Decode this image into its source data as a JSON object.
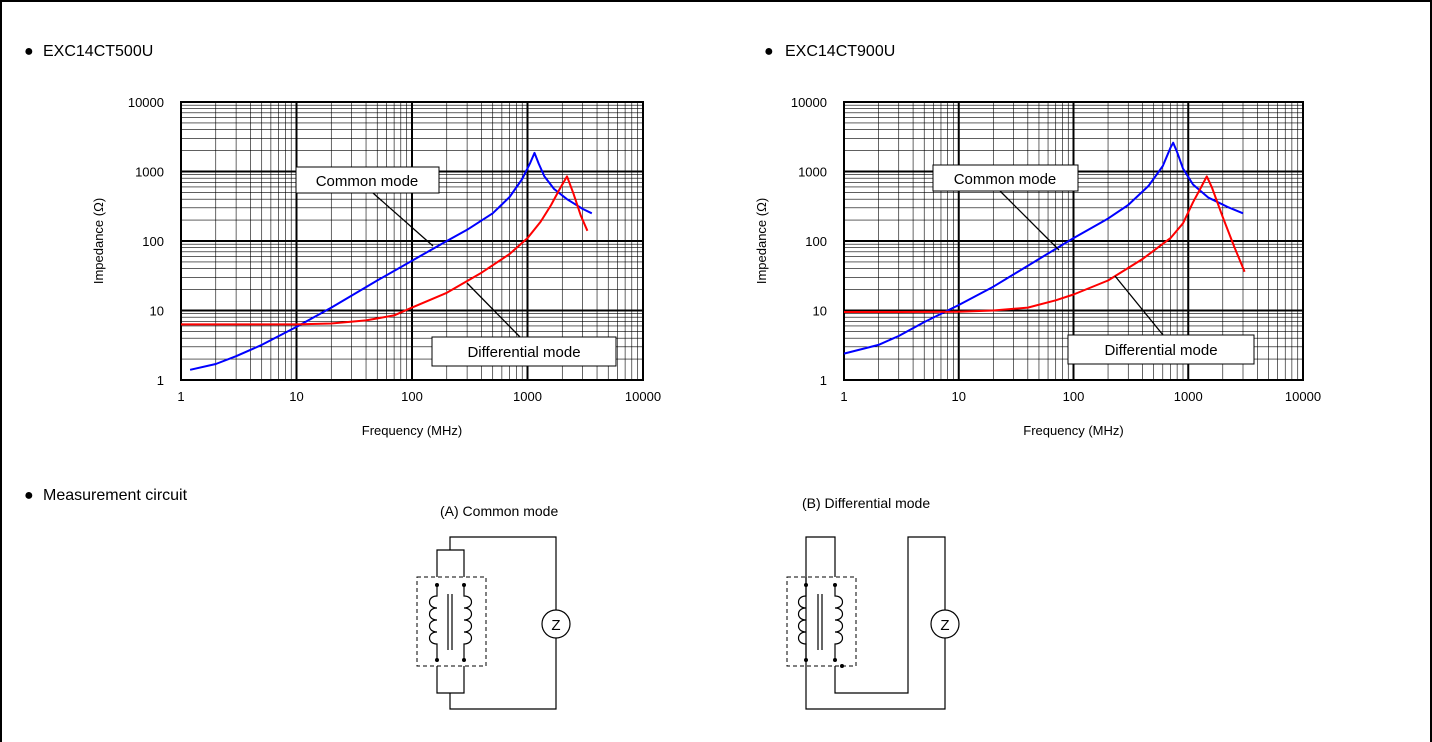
{
  "sections": {
    "chart1_heading": "EXC14CT500U",
    "chart2_heading": "EXC14CT900U",
    "measurement_heading": "Measurement circuit",
    "bullet": "●",
    "circuit_a_title": "(A) Common mode",
    "circuit_b_title": "(B) Differential mode",
    "z_symbol": "Z"
  },
  "colors": {
    "common_mode": "#0000ff",
    "differential_mode": "#ff0000",
    "grid": "#000000"
  },
  "chart_data": [
    {
      "type": "line",
      "title": "EXC14CT500U",
      "xlabel": "Frequency (MHz)",
      "ylabel": "Impedance (Ω)",
      "xscale": "log",
      "yscale": "log",
      "xlim": [
        1,
        10000
      ],
      "ylim": [
        1,
        10000
      ],
      "xticks": [
        "1",
        "10",
        "100",
        "1000",
        "10000"
      ],
      "yticks": [
        "1",
        "10",
        "100",
        "1000",
        "10000"
      ],
      "grid": true,
      "series": [
        {
          "name": "Common mode",
          "color": "#0000ff",
          "points": [
            [
              1.2,
              1.4
            ],
            [
              2,
              1.7
            ],
            [
              3,
              2.2
            ],
            [
              5,
              3.2
            ],
            [
              10,
              5.8
            ],
            [
              20,
              11
            ],
            [
              50,
              27
            ],
            [
              100,
              52
            ],
            [
              200,
              100
            ],
            [
              300,
              145
            ],
            [
              500,
              250
            ],
            [
              700,
              430
            ],
            [
              900,
              780
            ],
            [
              1050,
              1300
            ],
            [
              1150,
              1850
            ],
            [
              1250,
              1300
            ],
            [
              1400,
              850
            ],
            [
              1700,
              560
            ],
            [
              2200,
              400
            ],
            [
              3000,
              290
            ],
            [
              3600,
              250
            ]
          ]
        },
        {
          "name": "Differential mode",
          "color": "#ff0000",
          "points": [
            [
              1,
              6.3
            ],
            [
              3,
              6.3
            ],
            [
              10,
              6.3
            ],
            [
              20,
              6.5
            ],
            [
              40,
              7.2
            ],
            [
              70,
              8.5
            ],
            [
              100,
              11
            ],
            [
              200,
              18
            ],
            [
              400,
              35
            ],
            [
              700,
              65
            ],
            [
              1000,
              110
            ],
            [
              1300,
              190
            ],
            [
              1600,
              330
            ],
            [
              1900,
              560
            ],
            [
              2200,
              850
            ],
            [
              2500,
              480
            ],
            [
              2900,
              230
            ],
            [
              3300,
              140
            ]
          ]
        }
      ],
      "annotations": [
        {
          "text": "Common mode"
        },
        {
          "text": "Differential mode"
        }
      ]
    },
    {
      "type": "line",
      "title": "EXC14CT900U",
      "xlabel": "Frequency (MHz)",
      "ylabel": "Impedance (Ω)",
      "xscale": "log",
      "yscale": "log",
      "xlim": [
        1,
        10000
      ],
      "ylim": [
        1,
        10000
      ],
      "xticks": [
        "1",
        "10",
        "100",
        "1000",
        "10000"
      ],
      "yticks": [
        "1",
        "10",
        "100",
        "1000",
        "10000"
      ],
      "grid": true,
      "series": [
        {
          "name": "Common mode",
          "color": "#0000ff",
          "points": [
            [
              1,
              2.4
            ],
            [
              2,
              3.2
            ],
            [
              3,
              4.3
            ],
            [
              5,
              6.8
            ],
            [
              10,
              12
            ],
            [
              20,
              22
            ],
            [
              50,
              55
            ],
            [
              100,
              110
            ],
            [
              200,
              210
            ],
            [
              300,
              330
            ],
            [
              450,
              620
            ],
            [
              600,
              1200
            ],
            [
              700,
              2200
            ],
            [
              740,
              2600
            ],
            [
              800,
              1900
            ],
            [
              900,
              1100
            ],
            [
              1100,
              650
            ],
            [
              1500,
              420
            ],
            [
              2200,
              310
            ],
            [
              3000,
              250
            ]
          ]
        },
        {
          "name": "Differential mode",
          "color": "#ff0000",
          "points": [
            [
              1,
              9.5
            ],
            [
              3,
              9.5
            ],
            [
              10,
              9.6
            ],
            [
              20,
              10
            ],
            [
              40,
              11
            ],
            [
              70,
              14
            ],
            [
              100,
              17
            ],
            [
              200,
              27
            ],
            [
              400,
              55
            ],
            [
              700,
              110
            ],
            [
              900,
              180
            ],
            [
              1100,
              360
            ],
            [
              1300,
              600
            ],
            [
              1450,
              850
            ],
            [
              1600,
              600
            ],
            [
              2000,
              220
            ],
            [
              2500,
              85
            ],
            [
              3100,
              36
            ]
          ]
        }
      ],
      "annotations": [
        {
          "text": "Common mode"
        },
        {
          "text": "Differential mode"
        }
      ]
    }
  ]
}
